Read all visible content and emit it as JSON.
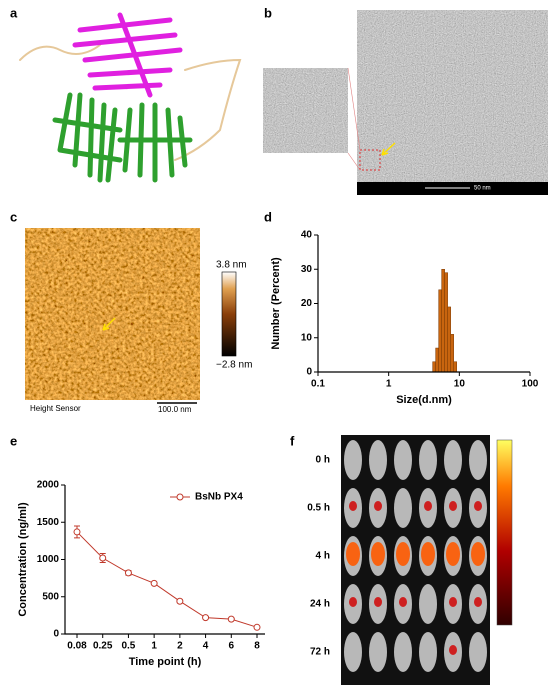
{
  "panel_labels": [
    "a",
    "b",
    "c",
    "d",
    "e",
    "f"
  ],
  "tem": {
    "scale_bar": "50 nm"
  },
  "afm": {
    "max_label": "3.8 nm",
    "min_label": "−2.8 nm",
    "caption": "Height Sensor",
    "scale_bar": "100.0 nm"
  },
  "imaging": {
    "time_points": [
      "0 h",
      "0.5 h",
      "4 h",
      "24 h",
      "72 h"
    ]
  },
  "chart_data": [
    {
      "type": "histogram",
      "xlabel": "Size(d.nm)",
      "ylabel": "Number (Percent)",
      "log_x": true,
      "color": "#c8650f",
      "bins": [
        4.19,
        4.62,
        5.1,
        5.62,
        6.2,
        6.84,
        7.55,
        8.33,
        9.19
      ],
      "counts": [
        3,
        7,
        24,
        30,
        29,
        19,
        11,
        3
      ],
      "xlim": [
        0.1,
        100
      ],
      "xticks": [
        0.1,
        1,
        10,
        100
      ],
      "ylim": [
        0,
        40
      ],
      "yticks": [
        0,
        10,
        20,
        30,
        40
      ]
    },
    {
      "type": "line",
      "xlabel": "Time point (h)",
      "ylabel": "Concentration (ng/ml)",
      "categories": [
        "0.08",
        "0.25",
        "0.5",
        "1",
        "2",
        "4",
        "6",
        "8"
      ],
      "series": [
        {
          "name": "BsNb PX4",
          "color": "#c0392b",
          "values": [
            1370,
            1020,
            820,
            680,
            440,
            220,
            200,
            90
          ],
          "errors": [
            80,
            60,
            30,
            15,
            20,
            10,
            10,
            10
          ]
        }
      ],
      "ylim": [
        0,
        2000
      ],
      "yticks": [
        0,
        500,
        1000,
        1500,
        2000
      ],
      "legend": "upper right"
    }
  ]
}
